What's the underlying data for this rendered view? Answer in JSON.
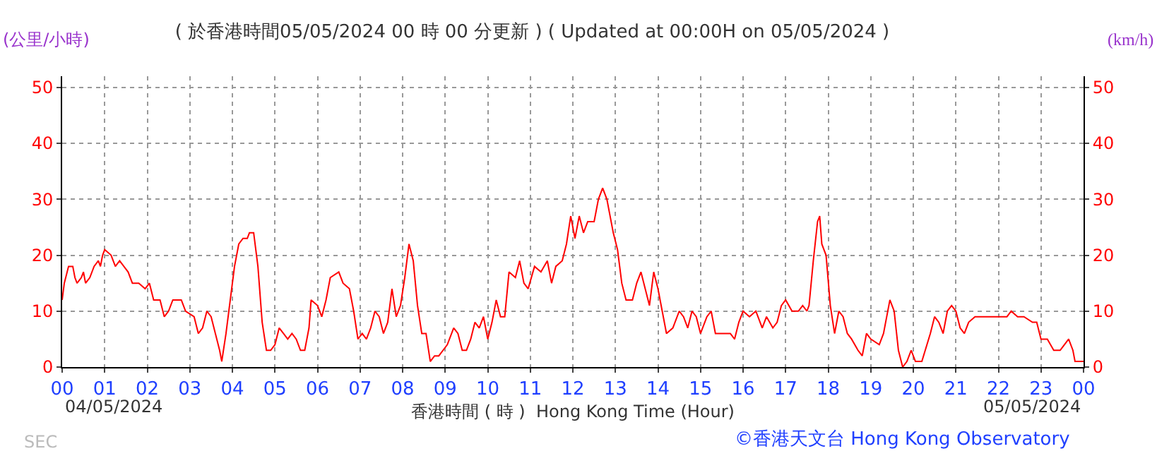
{
  "chart_data": {
    "type": "line",
    "title": "( 於香港時間05/05/2024 00 時 00 分更新 ) ( Updated at 00:00H on 05/05/2024 )",
    "ylabel": "(公里/小時)",
    "y2label": "(km/h)",
    "xlabel": "香港時間 ( 時 )  Hong Kong Time (Hour)",
    "annotations": [
      "04/05/2024",
      "05/05/2024",
      "©香港天文台 Hong Kong Observatory",
      "SEC"
    ],
    "xlim": [
      0,
      24
    ],
    "xticks": [
      {
        "value": 0,
        "label": "00"
      },
      {
        "value": 1,
        "label": "01"
      },
      {
        "value": 2,
        "label": "02"
      },
      {
        "value": 3,
        "label": "03"
      },
      {
        "value": 4,
        "label": "04"
      },
      {
        "value": 5,
        "label": "05"
      },
      {
        "value": 6,
        "label": "06"
      },
      {
        "value": 7,
        "label": "07"
      },
      {
        "value": 8,
        "label": "08"
      },
      {
        "value": 9,
        "label": "09"
      },
      {
        "value": 10,
        "label": "10"
      },
      {
        "value": 11,
        "label": "11"
      },
      {
        "value": 12,
        "label": "12"
      },
      {
        "value": 13,
        "label": "13"
      },
      {
        "value": 14,
        "label": "14"
      },
      {
        "value": 15,
        "label": "15"
      },
      {
        "value": 16,
        "label": "16"
      },
      {
        "value": 17,
        "label": "17"
      },
      {
        "value": 18,
        "label": "18"
      },
      {
        "value": 19,
        "label": "19"
      },
      {
        "value": 20,
        "label": "20"
      },
      {
        "value": 21,
        "label": "21"
      },
      {
        "value": 22,
        "label": "22"
      },
      {
        "value": 23,
        "label": "23"
      },
      {
        "value": 24,
        "label": "00"
      }
    ],
    "ylim": [
      0,
      52
    ],
    "yticks": [
      0,
      10,
      20,
      30,
      40,
      50
    ],
    "y2lim": [
      0,
      52
    ],
    "y2ticks": [
      0,
      10,
      20,
      30,
      40,
      50
    ],
    "grid": true,
    "line_style": "solid",
    "marker": "none",
    "series": [
      {
        "color": "#ff0000",
        "x": [
          0,
          0.05,
          0.15,
          0.25,
          0.3,
          0.35,
          0.45,
          0.5,
          0.55,
          0.65,
          0.75,
          0.85,
          0.9,
          0.95,
          1.0,
          1.15,
          1.25,
          1.35,
          1.45,
          1.55,
          1.65,
          1.8,
          1.95,
          2.05,
          2.15,
          2.3,
          2.4,
          2.5,
          2.6,
          2.8,
          2.9,
          3.1,
          3.2,
          3.3,
          3.4,
          3.5,
          3.6,
          3.7,
          3.75,
          3.85,
          3.95,
          4.05,
          4.15,
          4.25,
          4.35,
          4.4,
          4.5,
          4.6,
          4.7,
          4.8,
          4.9,
          5.0,
          5.1,
          5.2,
          5.3,
          5.4,
          5.5,
          5.6,
          5.7,
          5.8,
          5.85,
          6.0,
          6.1,
          6.2,
          6.3,
          6.5,
          6.6,
          6.75,
          6.85,
          6.95,
          7.05,
          7.15,
          7.25,
          7.35,
          7.45,
          7.55,
          7.65,
          7.75,
          7.85,
          7.95,
          8.05,
          8.15,
          8.25,
          8.35,
          8.45,
          8.55,
          8.65,
          8.75,
          8.85,
          8.95,
          9.05,
          9.2,
          9.3,
          9.4,
          9.5,
          9.6,
          9.7,
          9.8,
          9.9,
          10.0,
          10.1,
          10.2,
          10.3,
          10.4,
          10.5,
          10.65,
          10.75,
          10.85,
          10.95,
          11.1,
          11.25,
          11.4,
          11.5,
          11.6,
          11.75,
          11.85,
          11.95,
          12.05,
          12.15,
          12.25,
          12.35,
          12.5,
          12.6,
          12.7,
          12.8,
          12.95,
          13.05,
          13.15,
          13.25,
          13.4,
          13.5,
          13.6,
          13.7,
          13.8,
          13.9,
          14.0,
          14.1,
          14.2,
          14.35,
          14.5,
          14.6,
          14.7,
          14.8,
          14.9,
          15.0,
          15.15,
          15.25,
          15.35,
          15.5,
          15.7,
          15.8,
          15.9,
          16.0,
          16.15,
          16.3,
          16.45,
          16.55,
          16.7,
          16.8,
          16.9,
          17.0,
          17.15,
          17.3,
          17.4,
          17.5,
          17.55,
          17.65,
          17.75,
          17.8,
          17.85,
          17.95,
          18.05,
          18.15,
          18.25,
          18.35,
          18.45,
          18.55,
          18.7,
          18.8,
          18.9,
          19.0,
          19.2,
          19.3,
          19.45,
          19.55,
          19.65,
          19.75,
          19.85,
          19.95,
          20.05,
          20.2,
          20.4,
          20.5,
          20.6,
          20.7,
          20.8,
          20.9,
          21.0,
          21.1,
          21.2,
          21.3,
          21.45,
          21.6,
          21.8,
          22.0,
          22.2,
          22.3,
          22.45,
          22.6,
          22.8,
          22.9,
          23.0,
          23.15,
          23.3,
          23.45,
          23.55,
          23.65,
          23.75,
          23.8,
          23.9,
          24
        ],
        "values": [
          12,
          15,
          18,
          18,
          16,
          15,
          16,
          17,
          15,
          16,
          18,
          19,
          18,
          20,
          21,
          20,
          18,
          19,
          18,
          17,
          15,
          15,
          14,
          15,
          12,
          12,
          9,
          10,
          12,
          12,
          10,
          9,
          6,
          7,
          10,
          9,
          6,
          3,
          1,
          6,
          12,
          18,
          22,
          23,
          23,
          24,
          24,
          18,
          8,
          3,
          3,
          4,
          7,
          6,
          5,
          6,
          5,
          3,
          3,
          7,
          12,
          11,
          9,
          12,
          16,
          17,
          15,
          14,
          10,
          5,
          6,
          5,
          7,
          10,
          9,
          6,
          8,
          14,
          9,
          11,
          16,
          22,
          19,
          11,
          6,
          6,
          1,
          2,
          2,
          3,
          4,
          7,
          6,
          3,
          3,
          5,
          8,
          7,
          9,
          5,
          8,
          12,
          9,
          9,
          17,
          16,
          19,
          15,
          14,
          18,
          17,
          19,
          15,
          18,
          19,
          22,
          27,
          23,
          27,
          24,
          26,
          26,
          30,
          32,
          30,
          24,
          21,
          15,
          12,
          12,
          15,
          17,
          14,
          11,
          17,
          14,
          10,
          6,
          7,
          10,
          9,
          7,
          10,
          9,
          6,
          9,
          10,
          6,
          6,
          6,
          5,
          8,
          10,
          9,
          10,
          7,
          9,
          7,
          8,
          11,
          12,
          10,
          10,
          11,
          10,
          11,
          19,
          26,
          27,
          22,
          20,
          11,
          6,
          10,
          9,
          6,
          5,
          3,
          2,
          6,
          5,
          4,
          6,
          12,
          10,
          3,
          0,
          1,
          3,
          1,
          1,
          6,
          9,
          8,
          6,
          10,
          11,
          10,
          7,
          6,
          8,
          9,
          9,
          9,
          9,
          9,
          10,
          9,
          9,
          8,
          8,
          5,
          5,
          3,
          3,
          4,
          5,
          3,
          1,
          1,
          1
        ]
      }
    ]
  }
}
